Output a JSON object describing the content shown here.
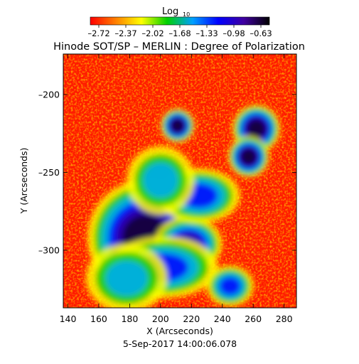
{
  "colorbar": {
    "label": "Log",
    "label_sub": "10",
    "ticks": [
      "-2.72",
      "-2.37",
      "-2.02",
      "-1.68",
      "-1.33",
      "-0.98",
      "-0.63"
    ],
    "colors": [
      "#ff0000",
      "#ff8000",
      "#ffff00",
      "#00d000",
      "#00a0ff",
      "#0000ff",
      "#4000a0",
      "#000000"
    ]
  },
  "chart_data": {
    "type": "heatmap",
    "title": "Hinode SOT/SP – MERLIN : Degree of Polarization",
    "xlabel": "X (Arcseconds)",
    "ylabel": "Y (Arcseconds)",
    "x_ticks": [
      "140",
      "160",
      "180",
      "200",
      "220",
      "240",
      "260",
      "280"
    ],
    "y_ticks": [
      "-200",
      "-250",
      "-300"
    ],
    "xlim": [
      137,
      288
    ],
    "ylim": [
      -337,
      -174
    ],
    "value_range": [
      -2.72,
      -0.63
    ],
    "timestamp": "5-Sep-2017 14:00:06.078",
    "features": [
      {
        "x": 190,
        "y": -292,
        "level": 0.95,
        "rx": 17,
        "ry": 17
      },
      {
        "x": 218,
        "y": -296,
        "level": 0.8,
        "rx": 10,
        "ry": 8
      },
      {
        "x": 202,
        "y": -311,
        "level": 0.7,
        "rx": 16,
        "ry": 9
      },
      {
        "x": 178,
        "y": -318,
        "level": 0.55,
        "rx": 12,
        "ry": 10
      },
      {
        "x": 211,
        "y": -220,
        "level": 0.92,
        "rx": 5,
        "ry": 5
      },
      {
        "x": 262,
        "y": -222,
        "level": 0.95,
        "rx": 7,
        "ry": 7
      },
      {
        "x": 257,
        "y": -240,
        "level": 0.92,
        "rx": 6,
        "ry": 6
      },
      {
        "x": 245,
        "y": -323,
        "level": 0.7,
        "rx": 7,
        "ry": 6
      },
      {
        "x": 225,
        "y": -265,
        "level": 0.6,
        "rx": 12,
        "ry": 8
      },
      {
        "x": 200,
        "y": -255,
        "level": 0.55,
        "rx": 10,
        "ry": 10
      }
    ]
  }
}
